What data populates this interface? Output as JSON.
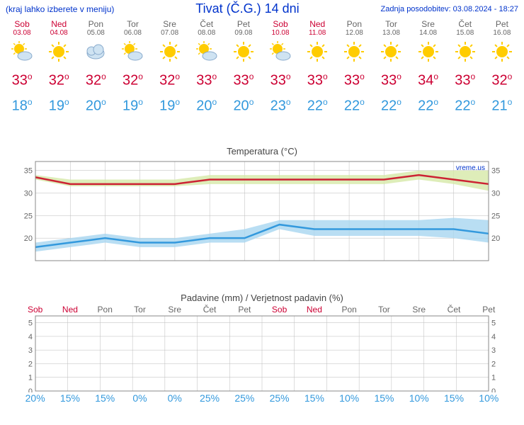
{
  "header": {
    "menu_note": "(kraj lahko izberete v meniju)",
    "title": "Tivat (Č.G.) 14 dni",
    "last_update": "Zadnja posodobitev: 03.08.2024 - 18:27"
  },
  "days": [
    {
      "name": "Sob",
      "date": "03.08",
      "weekend": true,
      "icon": "sun-cloud",
      "hi": 33,
      "lo": 18,
      "precip": 20
    },
    {
      "name": "Ned",
      "date": "04.08",
      "weekend": true,
      "icon": "sun",
      "hi": 32,
      "lo": 19,
      "precip": 15
    },
    {
      "name": "Pon",
      "date": "05.08",
      "weekend": false,
      "icon": "cloud",
      "hi": 32,
      "lo": 20,
      "precip": 15
    },
    {
      "name": "Tor",
      "date": "06.08",
      "weekend": false,
      "icon": "sun-cloud",
      "hi": 32,
      "lo": 19,
      "precip": 0
    },
    {
      "name": "Sre",
      "date": "07.08",
      "weekend": false,
      "icon": "sun",
      "hi": 32,
      "lo": 19,
      "precip": 0
    },
    {
      "name": "Čet",
      "date": "08.08",
      "weekend": false,
      "icon": "sun-cloud",
      "hi": 33,
      "lo": 20,
      "precip": 25
    },
    {
      "name": "Pet",
      "date": "09.08",
      "weekend": false,
      "icon": "sun",
      "hi": 33,
      "lo": 20,
      "precip": 25
    },
    {
      "name": "Sob",
      "date": "10.08",
      "weekend": true,
      "icon": "sun-cloud",
      "hi": 33,
      "lo": 23,
      "precip": 25
    },
    {
      "name": "Ned",
      "date": "11.08",
      "weekend": true,
      "icon": "sun",
      "hi": 33,
      "lo": 22,
      "precip": 15
    },
    {
      "name": "Pon",
      "date": "12.08",
      "weekend": false,
      "icon": "sun",
      "hi": 33,
      "lo": 22,
      "precip": 10
    },
    {
      "name": "Tor",
      "date": "13.08",
      "weekend": false,
      "icon": "sun",
      "hi": 33,
      "lo": 22,
      "precip": 15
    },
    {
      "name": "Sre",
      "date": "14.08",
      "weekend": false,
      "icon": "sun",
      "hi": 34,
      "lo": 22,
      "precip": 10
    },
    {
      "name": "Čet",
      "date": "15.08",
      "weekend": false,
      "icon": "sun",
      "hi": 33,
      "lo": 22,
      "precip": 15
    },
    {
      "name": "Pet",
      "date": "16.08",
      "weekend": false,
      "icon": "sun",
      "hi": 32,
      "lo": 21,
      "precip": 10
    }
  ],
  "temp_chart": {
    "title": "Temperatura (°C)",
    "ymin": 15,
    "ymax": 37,
    "yticks": [
      20,
      25,
      30,
      35
    ],
    "hi_band_upper": [
      34,
      33,
      33,
      33,
      33,
      34,
      34,
      34,
      34,
      34,
      34,
      35,
      35,
      35
    ],
    "hi_band_lower": [
      33,
      31.5,
      31.5,
      31.5,
      31.5,
      32,
      32,
      32,
      32,
      32,
      32,
      33,
      32,
      30.5
    ],
    "hi_line": [
      33.5,
      32,
      32,
      32,
      32,
      33,
      33,
      33,
      33,
      33,
      33,
      34,
      33,
      32
    ],
    "lo_band_upper": [
      19,
      20,
      21,
      20,
      20,
      21,
      22,
      24,
      24,
      24,
      24,
      24,
      24.5,
      24
    ],
    "lo_band_lower": [
      17,
      18,
      19,
      18,
      18,
      19,
      19,
      22,
      20.5,
      20.5,
      20.5,
      20.5,
      20,
      19
    ],
    "lo_line": [
      18,
      19,
      20,
      19,
      19,
      20,
      20,
      23,
      22,
      22,
      22,
      22,
      22,
      21
    ],
    "hi_band_color": "#d6e8a8",
    "hi_line_color": "#cc2233",
    "lo_band_color": "#a8d6f0",
    "lo_line_color": "#3399dd",
    "grid_color": "#bbbbbb",
    "watermark": "vreme.us"
  },
  "precip_chart": {
    "title": "Padavine (mm) / Verjetnost padavin (%)",
    "ymin": 0,
    "ymax": 5.5,
    "yticks": [
      0,
      1,
      2,
      3,
      4,
      5
    ],
    "precip_mm": [
      0,
      0,
      0,
      0,
      0,
      0,
      0,
      0,
      0,
      0,
      0,
      0,
      0,
      0
    ],
    "grid_color": "#bbbbbb"
  }
}
